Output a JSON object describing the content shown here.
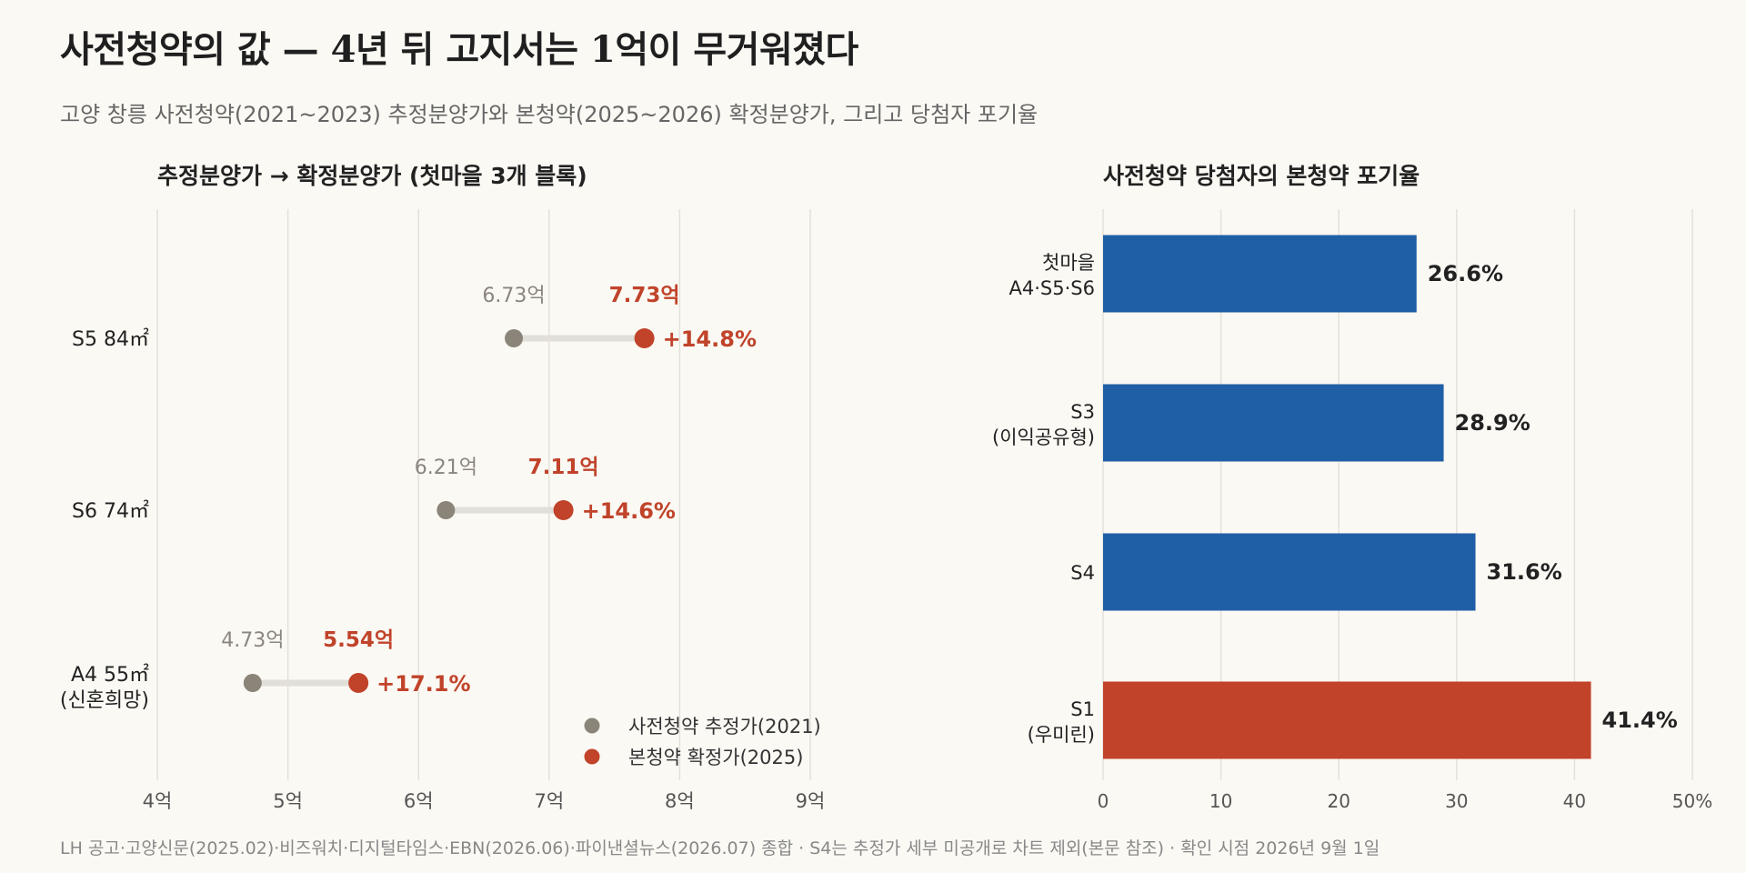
{
  "header": {
    "title": "사전청약의 값 — 4년 뒤 고지서는 1억이 무거워졌다",
    "subtitle": "고양 창릉 사전청약(2021~2023) 추정분양가와 본청약(2025~2026) 확정분양가, 그리고 당첨자 포기율"
  },
  "footer": {
    "source": "LH 공고·고양신문(2025.02)·비즈워치·디지털타임스·EBN(2026.06)·파이낸셜뉴스(2026.07) 종합 · S4는 추정가 세부 미공개로 차트 제외(본문 참조) · 확인 시점 2026년 9월 1일"
  },
  "colors": {
    "estimate": "#8b8478",
    "final": "#c0432a",
    "bar_blue": "#1f5fa6",
    "bar_red": "#c0432a",
    "grid": "#e4e1da",
    "connector": "#e2dfd9"
  },
  "chart_data": [
    {
      "type": "dumbbell",
      "title": "추정분양가 → 확정분양가 (첫마을 3개 블록)",
      "x_unit": "억",
      "xlim": [
        4,
        9
      ],
      "x_ticks": [
        4,
        5,
        6,
        7,
        8,
        9
      ],
      "x_tick_labels": [
        "4억",
        "5억",
        "6억",
        "7억",
        "8억",
        "9억"
      ],
      "grid": true,
      "legend": {
        "placement": "bottom-right",
        "entries": [
          "사전청약 추정가(2021)",
          "본청약 확정가(2025)"
        ]
      },
      "rows": [
        {
          "label": [
            "S5 84㎡"
          ],
          "estimate": 6.73,
          "final": 7.73,
          "estimate_label": "6.73억",
          "final_label": "7.73억",
          "change_label": "+14.8%"
        },
        {
          "label": [
            "S6 74㎡"
          ],
          "estimate": 6.21,
          "final": 7.11,
          "estimate_label": "6.21억",
          "final_label": "7.11억",
          "change_label": "+14.6%"
        },
        {
          "label": [
            "A4 55㎡",
            "(신혼희망)"
          ],
          "estimate": 4.73,
          "final": 5.54,
          "estimate_label": "4.73억",
          "final_label": "5.54억",
          "change_label": "+17.1%"
        }
      ]
    },
    {
      "type": "bar",
      "orientation": "horizontal",
      "title": "사전청약 당첨자의 본청약 포기율",
      "xlim": [
        0,
        50
      ],
      "x_ticks": [
        0,
        10,
        20,
        30,
        40,
        50
      ],
      "x_tick_labels": [
        "0",
        "10",
        "20",
        "30",
        "40",
        "50%"
      ],
      "grid": true,
      "categories": [
        [
          "첫마을",
          "A4·S5·S6"
        ],
        [
          "S3",
          "(이익공유형)"
        ],
        [
          "S4"
        ],
        [
          "S1",
          "(우미린)"
        ]
      ],
      "values": [
        26.6,
        28.9,
        31.6,
        41.4
      ],
      "value_labels": [
        "26.6%",
        "28.9%",
        "31.6%",
        "41.4%"
      ],
      "highlight": [
        false,
        false,
        false,
        true
      ]
    }
  ]
}
